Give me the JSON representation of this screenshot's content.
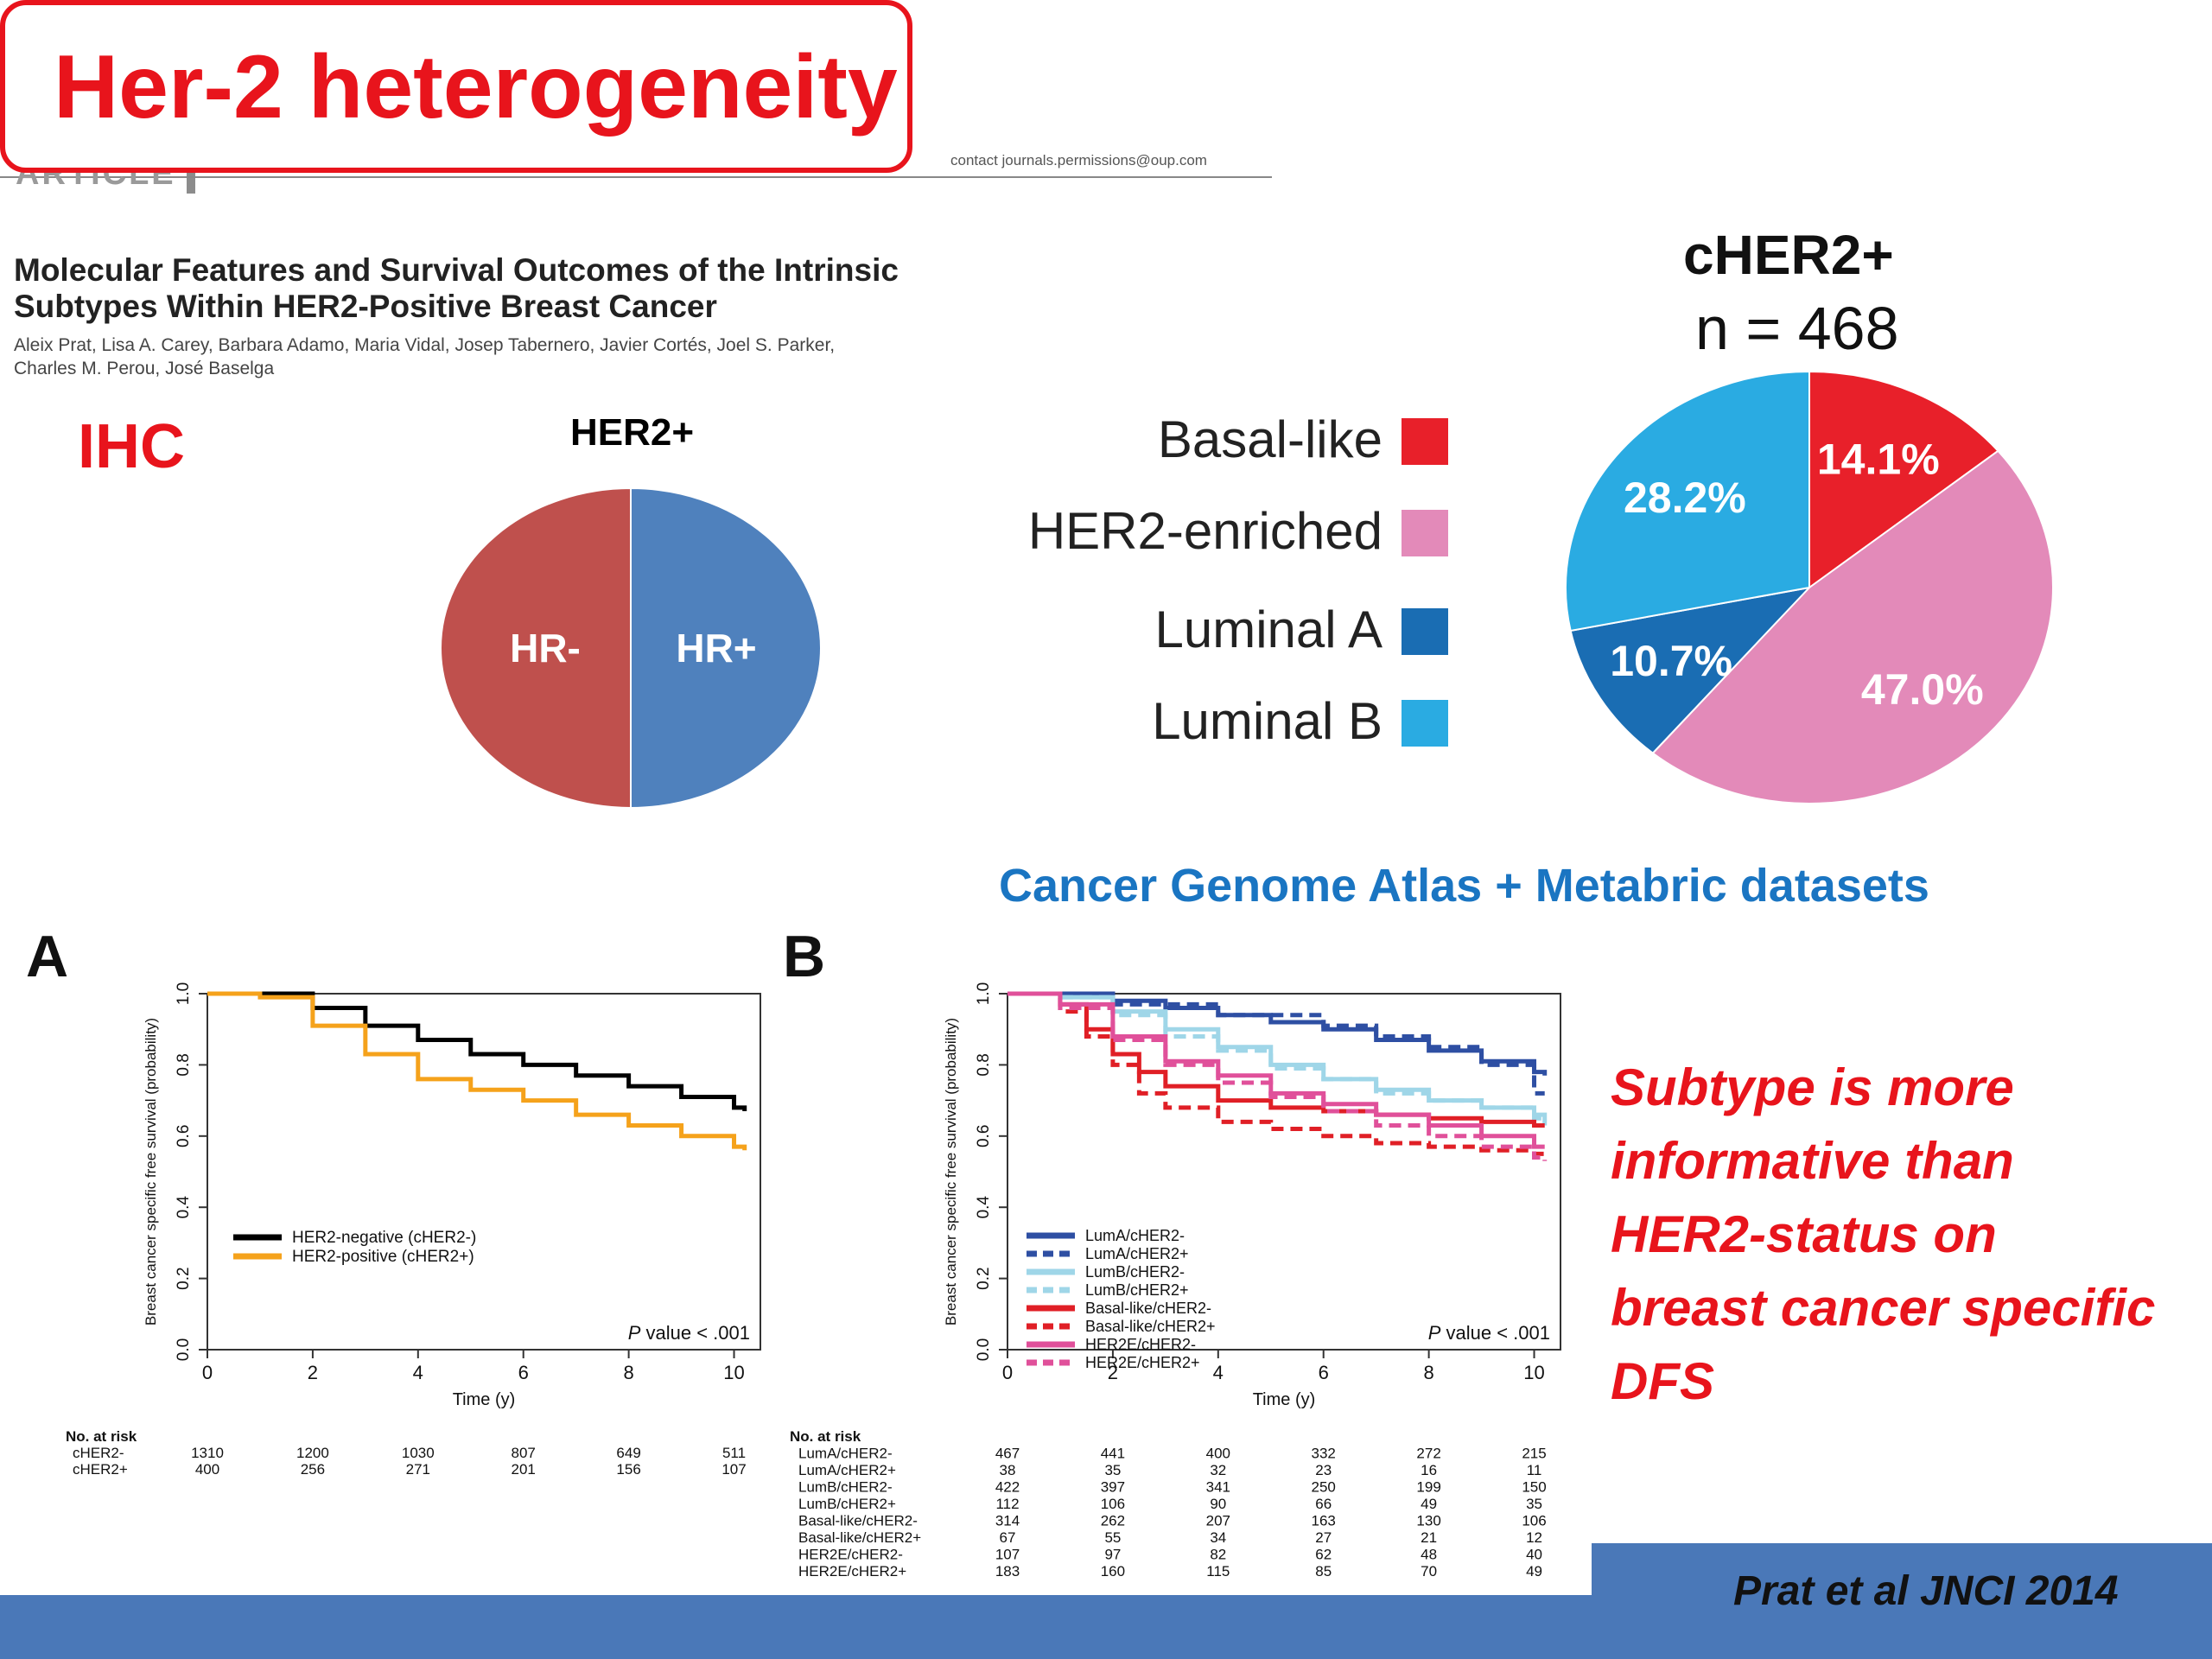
{
  "slide": {
    "title": "Her-2 heterogeneity",
    "article_tag": "ARTICLE",
    "contact": "contact journals.permissions@oup.com",
    "paper_title_line1": "Molecular Features and Survival Outcomes of the Intrinsic",
    "paper_title_line2": "Subtypes Within HER2-Positive Breast Cancer",
    "authors_line1": "Aleix Prat, Lisa A. Carey, Barbara Adamo, Maria Vidal, Josep Tabernero, Javier Cortés, Joel S. Parker,",
    "authors_line2": "Charles M. Perou, José Baselga",
    "ihc_label": "IHC",
    "datasets_label": "Cancer Genome Atlas + Metabric datasets",
    "conclusion": "Subtype is more informative than HER2-status on breast cancer specific DFS",
    "citation": "Prat et al JNCI 2014"
  },
  "chart_data": [
    {
      "type": "pie",
      "title": "HER2+",
      "slices": [
        {
          "label": "HR-",
          "value": 50,
          "color": "#bf504d"
        },
        {
          "label": "HR+",
          "value": 50,
          "color": "#4f81bd"
        }
      ]
    },
    {
      "type": "pie",
      "title": "cHER2+",
      "subtitle": "n = 468",
      "legend_position": "left",
      "slices": [
        {
          "label": "Basal-like",
          "value": 14.1,
          "display": "14.1%",
          "color": "#e8202a"
        },
        {
          "label": "HER2-enriched",
          "value": 47.0,
          "display": "47.0%",
          "color": "#e38ab9"
        },
        {
          "label": "Luminal A",
          "value": 10.7,
          "display": "10.7%",
          "color": "#1a6db3"
        },
        {
          "label": "Luminal B",
          "value": 28.2,
          "display": "28.2%",
          "color": "#2aabe2"
        }
      ]
    },
    {
      "type": "line",
      "panel": "A",
      "xlabel": "Time (y)",
      "ylabel": "Breast cancer specific free survival (probability)",
      "xlim": [
        0,
        10.5
      ],
      "ylim": [
        0,
        1.0
      ],
      "x_ticks": [
        0,
        2,
        4,
        6,
        8,
        10
      ],
      "y_ticks": [
        0.0,
        0.2,
        0.4,
        0.6,
        0.8,
        1.0
      ],
      "y_tick_labels": [
        "0.0",
        "0.2",
        "0.4",
        "0.6",
        "0.8",
        "1.0"
      ],
      "legend_position": "bottom-left",
      "annotation": "P value < .001",
      "series": [
        {
          "name": "HER2-negative (cHER2-)",
          "color": "#000000",
          "dash": "",
          "x": [
            0,
            1,
            2,
            3,
            4,
            5,
            6,
            7,
            8,
            9,
            10,
            10.2
          ],
          "y": [
            1.0,
            1.0,
            0.96,
            0.91,
            0.87,
            0.83,
            0.8,
            0.77,
            0.74,
            0.71,
            0.68,
            0.67
          ]
        },
        {
          "name": "HER2-positive (cHER2+)",
          "color": "#f5a21b",
          "dash": "",
          "x": [
            0,
            1,
            2,
            3,
            4,
            5,
            6,
            7,
            8,
            9,
            10,
            10.2
          ],
          "y": [
            1.0,
            0.99,
            0.91,
            0.83,
            0.76,
            0.73,
            0.7,
            0.66,
            0.63,
            0.6,
            0.57,
            0.56
          ]
        }
      ],
      "risk_table": {
        "header": "No. at risk",
        "rows": [
          {
            "label": "cHER2-",
            "values": [
              "1310",
              "1200",
              "1030",
              "807",
              "649",
              "511"
            ]
          },
          {
            "label": "cHER2+",
            "values": [
              "400",
              "256",
              "271",
              "201",
              "156",
              "107"
            ]
          }
        ]
      }
    },
    {
      "type": "line",
      "panel": "B",
      "xlabel": "Time (y)",
      "ylabel": "Breast cancer specific free survival (probability)",
      "xlim": [
        0,
        10.5
      ],
      "ylim": [
        0,
        1.0
      ],
      "x_ticks": [
        0,
        2,
        4,
        6,
        8,
        10
      ],
      "y_ticks": [
        0.0,
        0.2,
        0.4,
        0.6,
        0.8,
        1.0
      ],
      "y_tick_labels": [
        "0.0",
        "0.2",
        "0.4",
        "0.6",
        "0.8",
        "1.0"
      ],
      "legend_position": "bottom-left",
      "annotation": "P value < .001",
      "series": [
        {
          "name": "LumA/cHER2-",
          "color": "#2e4fa3",
          "dash": "",
          "x": [
            0,
            1,
            2,
            3,
            4,
            5,
            6,
            7,
            8,
            9,
            10,
            10.2
          ],
          "y": [
            1.0,
            1.0,
            0.98,
            0.96,
            0.94,
            0.92,
            0.9,
            0.87,
            0.84,
            0.81,
            0.78,
            0.77
          ]
        },
        {
          "name": "LumA/cHER2+",
          "color": "#2e4fa3",
          "dash": "14,8",
          "x": [
            0,
            1,
            2,
            3,
            4,
            5,
            6,
            7,
            8,
            9,
            10,
            10.2
          ],
          "y": [
            1.0,
            1.0,
            0.97,
            0.97,
            0.94,
            0.94,
            0.91,
            0.88,
            0.85,
            0.8,
            0.72,
            0.72
          ]
        },
        {
          "name": "LumB/cHER2-",
          "color": "#9fd6e8",
          "dash": "",
          "x": [
            0,
            1,
            2,
            3,
            4,
            5,
            6,
            7,
            8,
            9,
            10,
            10.2
          ],
          "y": [
            1.0,
            0.99,
            0.95,
            0.9,
            0.85,
            0.8,
            0.76,
            0.73,
            0.7,
            0.68,
            0.66,
            0.63
          ]
        },
        {
          "name": "LumB/cHER2+",
          "color": "#9fd6e8",
          "dash": "14,8",
          "x": [
            0,
            1,
            2,
            3,
            4,
            5,
            6,
            7,
            8,
            9,
            10,
            10.2
          ],
          "y": [
            1.0,
            0.99,
            0.94,
            0.88,
            0.84,
            0.79,
            0.76,
            0.72,
            0.7,
            0.68,
            0.65,
            0.64
          ]
        },
        {
          "name": "Basal-like/cHER2-",
          "color": "#e01f26",
          "dash": "",
          "x": [
            0,
            1,
            1.5,
            2,
            2.5,
            3,
            4,
            5,
            6,
            7,
            8,
            9,
            10,
            10.2
          ],
          "y": [
            1.0,
            0.97,
            0.9,
            0.83,
            0.78,
            0.74,
            0.7,
            0.68,
            0.67,
            0.66,
            0.65,
            0.64,
            0.63,
            0.63
          ]
        },
        {
          "name": "Basal-like/cHER2+",
          "color": "#e01f26",
          "dash": "14,8",
          "x": [
            0,
            1,
            1.5,
            2,
            2.5,
            3,
            4,
            5,
            6,
            7,
            8,
            9,
            10,
            10.2
          ],
          "y": [
            1.0,
            0.95,
            0.88,
            0.8,
            0.72,
            0.68,
            0.64,
            0.62,
            0.6,
            0.58,
            0.57,
            0.56,
            0.55,
            0.55
          ]
        },
        {
          "name": "HER2E/cHER2-",
          "color": "#e0509a",
          "dash": "",
          "x": [
            0,
            1,
            2,
            3,
            4,
            5,
            6,
            7,
            8,
            9,
            10,
            10.2
          ],
          "y": [
            1.0,
            0.97,
            0.88,
            0.81,
            0.77,
            0.72,
            0.69,
            0.66,
            0.63,
            0.6,
            0.57,
            0.57
          ]
        },
        {
          "name": "HER2E/cHER2+",
          "color": "#e0509a",
          "dash": "14,8",
          "x": [
            0,
            1,
            2,
            3,
            4,
            5,
            6,
            7,
            8,
            9,
            10,
            10.2
          ],
          "y": [
            1.0,
            0.96,
            0.87,
            0.8,
            0.75,
            0.71,
            0.67,
            0.63,
            0.6,
            0.57,
            0.54,
            0.53
          ]
        }
      ],
      "risk_table": {
        "header": "No. at risk",
        "rows": [
          {
            "label": "LumA/cHER2-",
            "values": [
              "467",
              "441",
              "400",
              "332",
              "272",
              "215"
            ]
          },
          {
            "label": "LumA/cHER2+",
            "values": [
              "38",
              "35",
              "32",
              "23",
              "16",
              "11"
            ]
          },
          {
            "label": "LumB/cHER2-",
            "values": [
              "422",
              "397",
              "341",
              "250",
              "199",
              "150"
            ]
          },
          {
            "label": "LumB/cHER2+",
            "values": [
              "112",
              "106",
              "90",
              "66",
              "49",
              "35"
            ]
          },
          {
            "label": "Basal-like/cHER2-",
            "values": [
              "314",
              "262",
              "207",
              "163",
              "130",
              "106"
            ]
          },
          {
            "label": "Basal-like/cHER2+",
            "values": [
              "67",
              "55",
              "34",
              "27",
              "21",
              "12"
            ]
          },
          {
            "label": "HER2E/cHER2-",
            "values": [
              "107",
              "97",
              "82",
              "62",
              "48",
              "40"
            ]
          },
          {
            "label": "HER2E/cHER2+",
            "values": [
              "183",
              "160",
              "115",
              "85",
              "70",
              "49"
            ]
          }
        ]
      }
    }
  ]
}
